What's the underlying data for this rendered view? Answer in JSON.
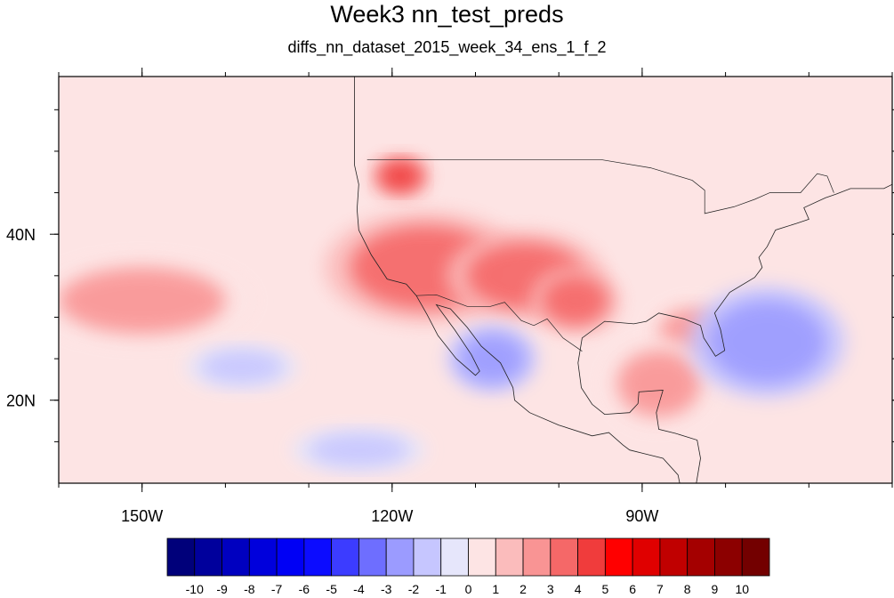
{
  "chart_data": {
    "type": "heatmap",
    "title": "Week3 nn_test_preds",
    "subtitle": "diffs_nn_dataset_2015_week_34_ens_1_f_2",
    "map_extent": {
      "lon": [
        -160,
        -60
      ],
      "lat": [
        10,
        59
      ]
    },
    "x_ticks": [
      {
        "lon": -150,
        "label": "150W"
      },
      {
        "lon": -120,
        "label": "120W"
      },
      {
        "lon": -90,
        "label": "90W"
      }
    ],
    "y_ticks": [
      {
        "lat": 40,
        "label": "40N"
      },
      {
        "lat": 20,
        "label": "20N"
      }
    ],
    "colorbar": {
      "levels": [
        -10,
        -9,
        -8,
        -7,
        -6,
        -5,
        -4,
        -3,
        -2,
        -1,
        0,
        1,
        2,
        3,
        4,
        5,
        6,
        7,
        8,
        9,
        10
      ],
      "labels": [
        "-10",
        "-9",
        "-8",
        "-7",
        "-6",
        "-5",
        "-4",
        "-3",
        "-2",
        "-1",
        "0",
        "1",
        "2",
        "3",
        "4",
        "5",
        "6",
        "7",
        "8",
        "9",
        "10"
      ],
      "colors": [
        "#00007a",
        "#00009c",
        "#0000c0",
        "#0000dc",
        "#0000f5",
        "#0c0cff",
        "#3c3cff",
        "#6e6eff",
        "#9b9bff",
        "#c6c6ff",
        "#e6e6fb",
        "#fde4e4",
        "#fbbcbc",
        "#f99494",
        "#f56868",
        "#f03c3c",
        "#ff0000",
        "#e00000",
        "#c00000",
        "#a40000",
        "#8c0000",
        "#730000"
      ]
    },
    "features": [
      {
        "kind": "warm",
        "level": 3,
        "lon": -116,
        "lat": 36,
        "rx": 9,
        "ry": 5
      },
      {
        "kind": "warm",
        "level": 4,
        "lon": -119,
        "lat": 47,
        "rx": 2.5,
        "ry": 1.8
      },
      {
        "kind": "warm",
        "level": 3,
        "lon": -104,
        "lat": 35,
        "rx": 7,
        "ry": 4
      },
      {
        "kind": "warm",
        "level": 3,
        "lon": -98,
        "lat": 32,
        "rx": 4,
        "ry": 3
      },
      {
        "kind": "warm",
        "level": 2,
        "lon": -150,
        "lat": 32,
        "rx": 10,
        "ry": 4
      },
      {
        "kind": "warm",
        "level": 2,
        "lon": -84,
        "lat": 28,
        "rx": 4,
        "ry": 3
      },
      {
        "kind": "warm",
        "level": 2,
        "lon": -88,
        "lat": 22,
        "rx": 5,
        "ry": 4
      },
      {
        "kind": "cool",
        "level": -3,
        "lon": -108,
        "lat": 25,
        "rx": 4,
        "ry": 3
      },
      {
        "kind": "cool",
        "level": -3,
        "lon": -75,
        "lat": 27,
        "rx": 7,
        "ry": 5
      },
      {
        "kind": "cool",
        "level": -2,
        "lon": -138,
        "lat": 24,
        "rx": 5,
        "ry": 2
      },
      {
        "kind": "cool",
        "level": -2,
        "lon": -124,
        "lat": 14,
        "rx": 6,
        "ry": 2
      }
    ]
  }
}
